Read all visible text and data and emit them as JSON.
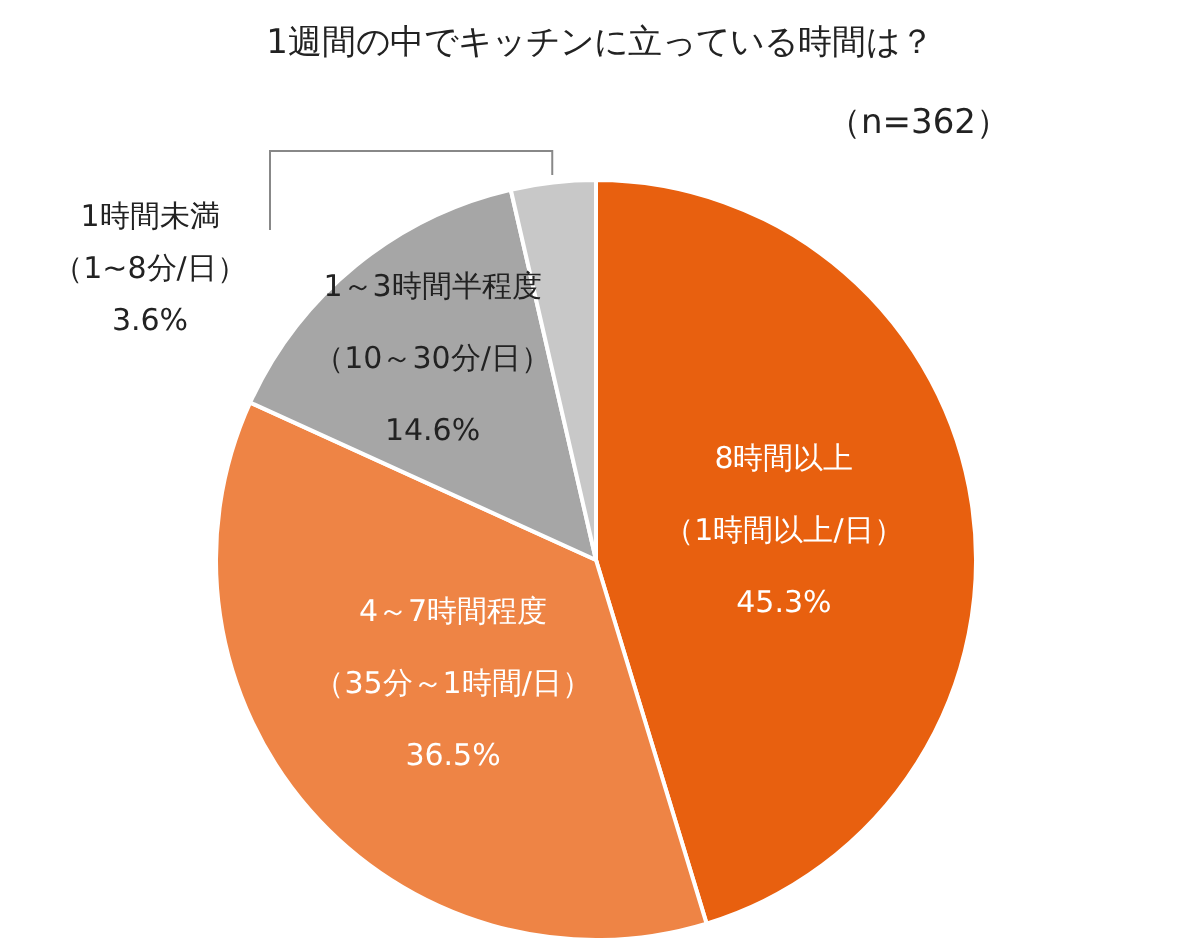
{
  "chart_data": {
    "type": "pie",
    "title": "1週間の中でキッチンに立っている時間は？",
    "subtitle": "（n=362）",
    "categories": [
      "8時間以上（1時間以上/日）",
      "4～7時間程度（35分～1時間/日）",
      "1～3時間半程度（10～30分/日）",
      "1時間未満（1~8分/日）"
    ],
    "values": [
      45.3,
      36.5,
      14.6,
      3.6
    ],
    "value_labels": [
      "45.3%",
      "36.5%",
      "14.6%",
      "3.6%"
    ],
    "colors": [
      "#e8600f",
      "#ee8445",
      "#a6a6a6",
      "#c8c8c8"
    ]
  }
}
